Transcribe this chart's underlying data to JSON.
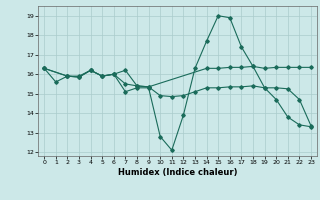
{
  "xlabel": "Humidex (Indice chaleur)",
  "bg_color": "#cce8e8",
  "grid_color": "#aacccc",
  "line_color": "#1a6b5a",
  "xlim": [
    -0.5,
    23.5
  ],
  "ylim": [
    11.8,
    19.5
  ],
  "yticks": [
    12,
    13,
    14,
    15,
    16,
    17,
    18,
    19
  ],
  "xticks": [
    0,
    1,
    2,
    3,
    4,
    5,
    6,
    7,
    8,
    9,
    10,
    11,
    12,
    13,
    14,
    15,
    16,
    17,
    18,
    19,
    20,
    21,
    22,
    23
  ],
  "line1_x": [
    0,
    1,
    2,
    3,
    4,
    5,
    6,
    7,
    8,
    9,
    10,
    11,
    12,
    13,
    14,
    15,
    16,
    17,
    18,
    19,
    20,
    21,
    22,
    23
  ],
  "line1_y": [
    16.3,
    15.6,
    15.9,
    15.9,
    16.2,
    15.9,
    16.0,
    15.1,
    15.3,
    15.3,
    12.8,
    12.1,
    13.9,
    16.3,
    17.7,
    19.0,
    18.9,
    17.4,
    16.4,
    15.3,
    14.7,
    13.8,
    13.4,
    13.3
  ],
  "line2_x": [
    0,
    2,
    3,
    4,
    5,
    6,
    7,
    8,
    9,
    14,
    15,
    16,
    17,
    18,
    19,
    20,
    21,
    22,
    23
  ],
  "line2_y": [
    16.3,
    15.9,
    15.85,
    16.2,
    15.9,
    16.0,
    16.2,
    15.4,
    15.35,
    16.3,
    16.3,
    16.35,
    16.35,
    16.4,
    16.3,
    16.35,
    16.35,
    16.35,
    16.35
  ],
  "line3_x": [
    0,
    2,
    3,
    4,
    5,
    6,
    7,
    8,
    9,
    10,
    11,
    12,
    13,
    14,
    15,
    16,
    17,
    18,
    19,
    20,
    21,
    22,
    23
  ],
  "line3_y": [
    16.3,
    15.9,
    15.85,
    16.2,
    15.9,
    16.0,
    15.5,
    15.4,
    15.35,
    14.9,
    14.85,
    14.9,
    15.1,
    15.3,
    15.3,
    15.35,
    15.35,
    15.4,
    15.3,
    15.3,
    15.25,
    14.7,
    13.35
  ]
}
